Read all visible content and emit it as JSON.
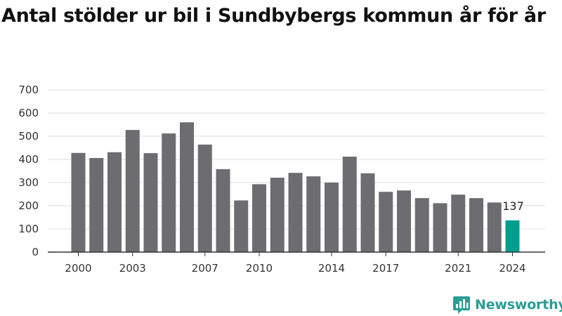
{
  "title": "Antal stölder ur bil i Sundbybergs kommun år för år",
  "brand": {
    "name": "Newsworthy",
    "icon": "newsworthy-logo-icon",
    "color": "#2a9d94"
  },
  "colors": {
    "bar": "#6d6c71",
    "highlight": "#009e8f",
    "grid": "#dddddd",
    "axis": "#333333"
  },
  "chart_data": {
    "type": "bar",
    "title": "Antal stölder ur bil i Sundbybergs kommun år för år",
    "xlabel": "",
    "ylabel": "",
    "categories": [
      "2000",
      "2001",
      "2002",
      "2003",
      "2004",
      "2005",
      "2006",
      "2007",
      "2008",
      "2009",
      "2010",
      "2011",
      "2012",
      "2013",
      "2014",
      "2015",
      "2016",
      "2017",
      "2018",
      "2019",
      "2020",
      "2021",
      "2022",
      "2023",
      "2024"
    ],
    "values": [
      428,
      406,
      431,
      527,
      427,
      512,
      560,
      464,
      358,
      223,
      293,
      321,
      342,
      327,
      300,
      412,
      340,
      260,
      266,
      233,
      211,
      248,
      233,
      214,
      137
    ],
    "x_tick_labels": [
      "2000",
      "2003",
      "2007",
      "2010",
      "2014",
      "2017",
      "2021",
      "2024"
    ],
    "y_ticks": [
      0,
      100,
      200,
      300,
      400,
      500,
      600,
      700
    ],
    "ylim": [
      0,
      700
    ],
    "grid": "horizontal",
    "highlight_category": "2024",
    "data_labels": [
      {
        "category": "2024",
        "text": "137"
      }
    ]
  }
}
